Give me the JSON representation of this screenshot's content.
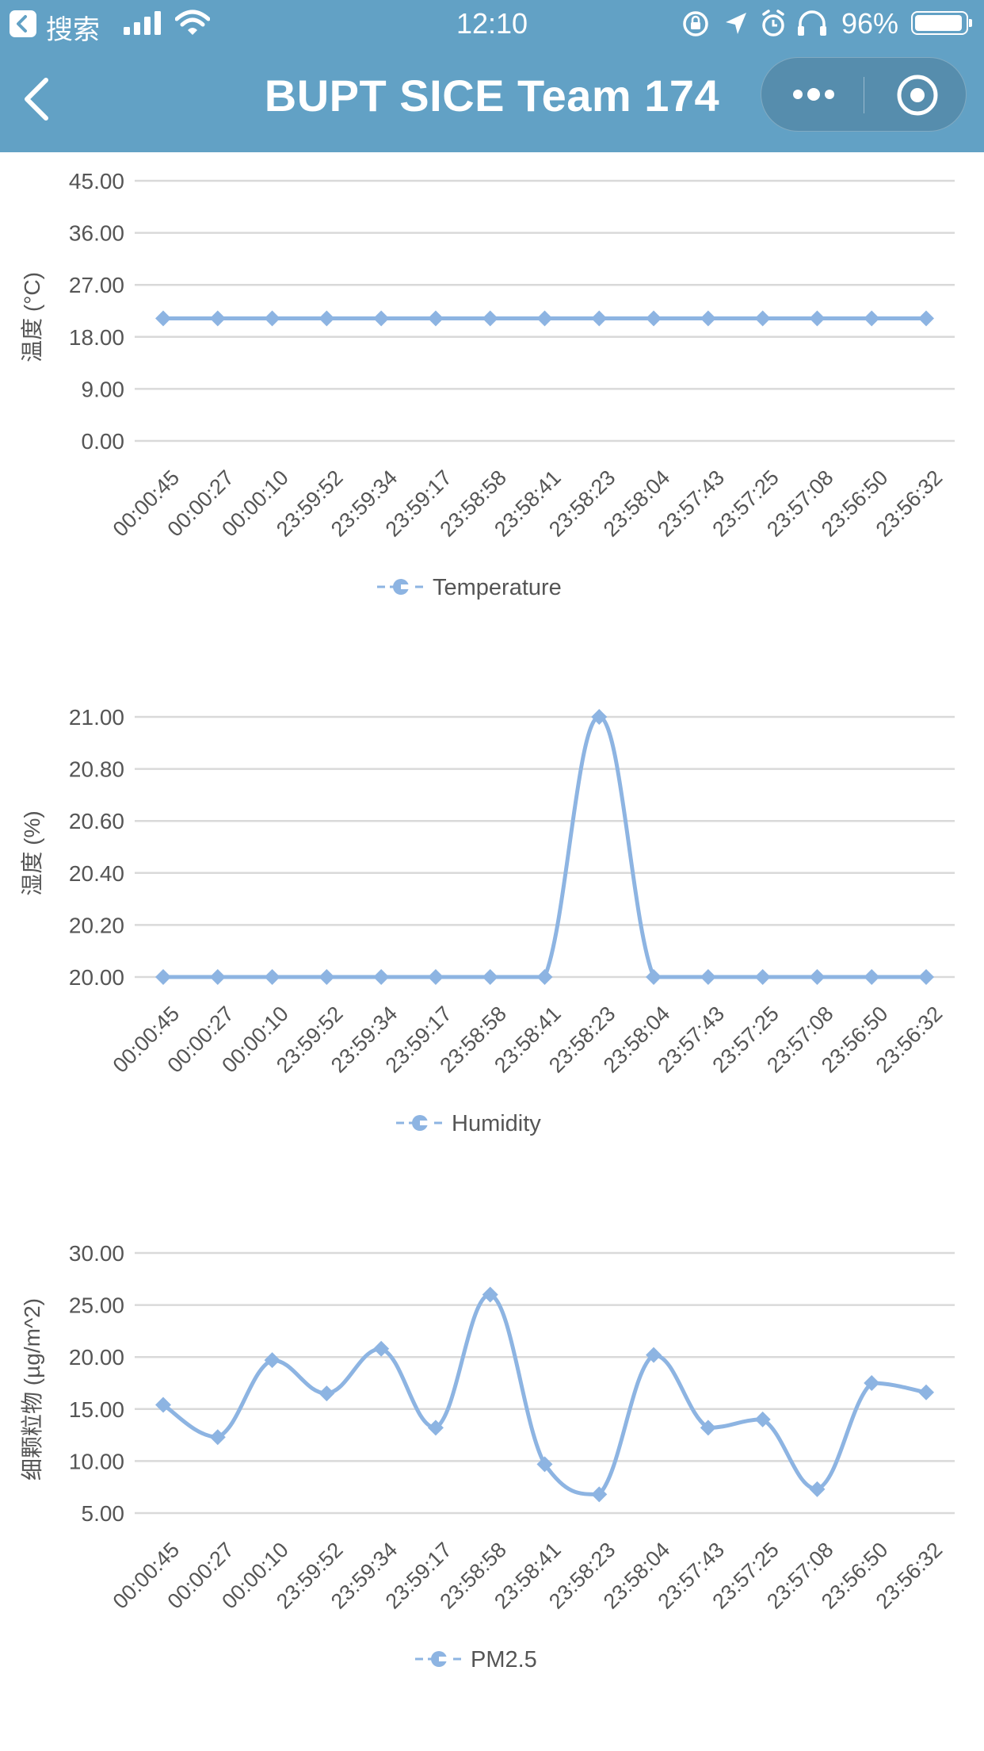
{
  "status_bar": {
    "back_label": "搜索",
    "time": "12:10",
    "battery": "96%",
    "battery_level": 0.96
  },
  "nav": {
    "title": "BUPT SICE Team 174"
  },
  "icons": [
    "back-app-icon",
    "signal-icon",
    "wifi-icon",
    "lock-rotation-icon",
    "location-icon",
    "alarm-icon",
    "headphones-icon",
    "battery-icon",
    "back-arrow-icon",
    "more-icon",
    "close-target-icon"
  ],
  "colors": {
    "header": "#62a1c5",
    "series": "#8db4e2",
    "grid": "#d9d9d9"
  },
  "chart_data": [
    {
      "type": "line",
      "ylabel": "温度 (°C)",
      "yticks": [
        "45.00",
        "36.00",
        "27.00",
        "18.00",
        "9.00",
        "0.00"
      ],
      "ylim": [
        0,
        45
      ],
      "categories": [
        "00:00:45",
        "00:00:27",
        "00:00:10",
        "23:59:52",
        "23:59:34",
        "23:59:17",
        "23:58:58",
        "23:58:41",
        "23:58:23",
        "23:58:04",
        "23:57:43",
        "23:57:25",
        "23:57:08",
        "23:56:50",
        "23:56:32"
      ],
      "series": [
        {
          "name": "Temperature",
          "values": [
            21.2,
            21.2,
            21.2,
            21.2,
            21.2,
            21.2,
            21.2,
            21.2,
            21.2,
            21.2,
            21.2,
            21.2,
            21.2,
            21.2,
            21.2
          ]
        }
      ],
      "legend": "bottom",
      "grid": true
    },
    {
      "type": "line",
      "ylabel": "湿度 (%)",
      "yticks": [
        "21.00",
        "20.80",
        "20.60",
        "20.40",
        "20.20",
        "20.00"
      ],
      "ylim": [
        20,
        21
      ],
      "categories": [
        "00:00:45",
        "00:00:27",
        "00:00:10",
        "23:59:52",
        "23:59:34",
        "23:59:17",
        "23:58:58",
        "23:58:41",
        "23:58:23",
        "23:58:04",
        "23:57:43",
        "23:57:25",
        "23:57:08",
        "23:56:50",
        "23:56:32"
      ],
      "series": [
        {
          "name": "Humidity",
          "values": [
            20,
            20,
            20,
            20,
            20,
            20,
            20,
            20,
            21,
            20,
            20,
            20,
            20,
            20,
            20
          ]
        }
      ],
      "legend": "bottom",
      "grid": true
    },
    {
      "type": "line",
      "ylabel": "细颗粒物 (µg/m^2)",
      "yticks": [
        "30.00",
        "25.00",
        "20.00",
        "15.00",
        "10.00",
        "5.00"
      ],
      "ylim": [
        5,
        30
      ],
      "categories": [
        "00:00:45",
        "00:00:27",
        "00:00:10",
        "23:59:52",
        "23:59:34",
        "23:59:17",
        "23:58:58",
        "23:58:41",
        "23:58:23",
        "23:58:04",
        "23:57:43",
        "23:57:25",
        "23:57:08",
        "23:56:50",
        "23:56:32"
      ],
      "series": [
        {
          "name": "PM2.5",
          "values": [
            15.4,
            12.3,
            19.7,
            16.5,
            20.8,
            13.2,
            26.0,
            9.7,
            6.8,
            20.2,
            13.2,
            14.0,
            7.3,
            17.5,
            16.6
          ]
        }
      ],
      "legend": "bottom",
      "grid": true
    }
  ]
}
